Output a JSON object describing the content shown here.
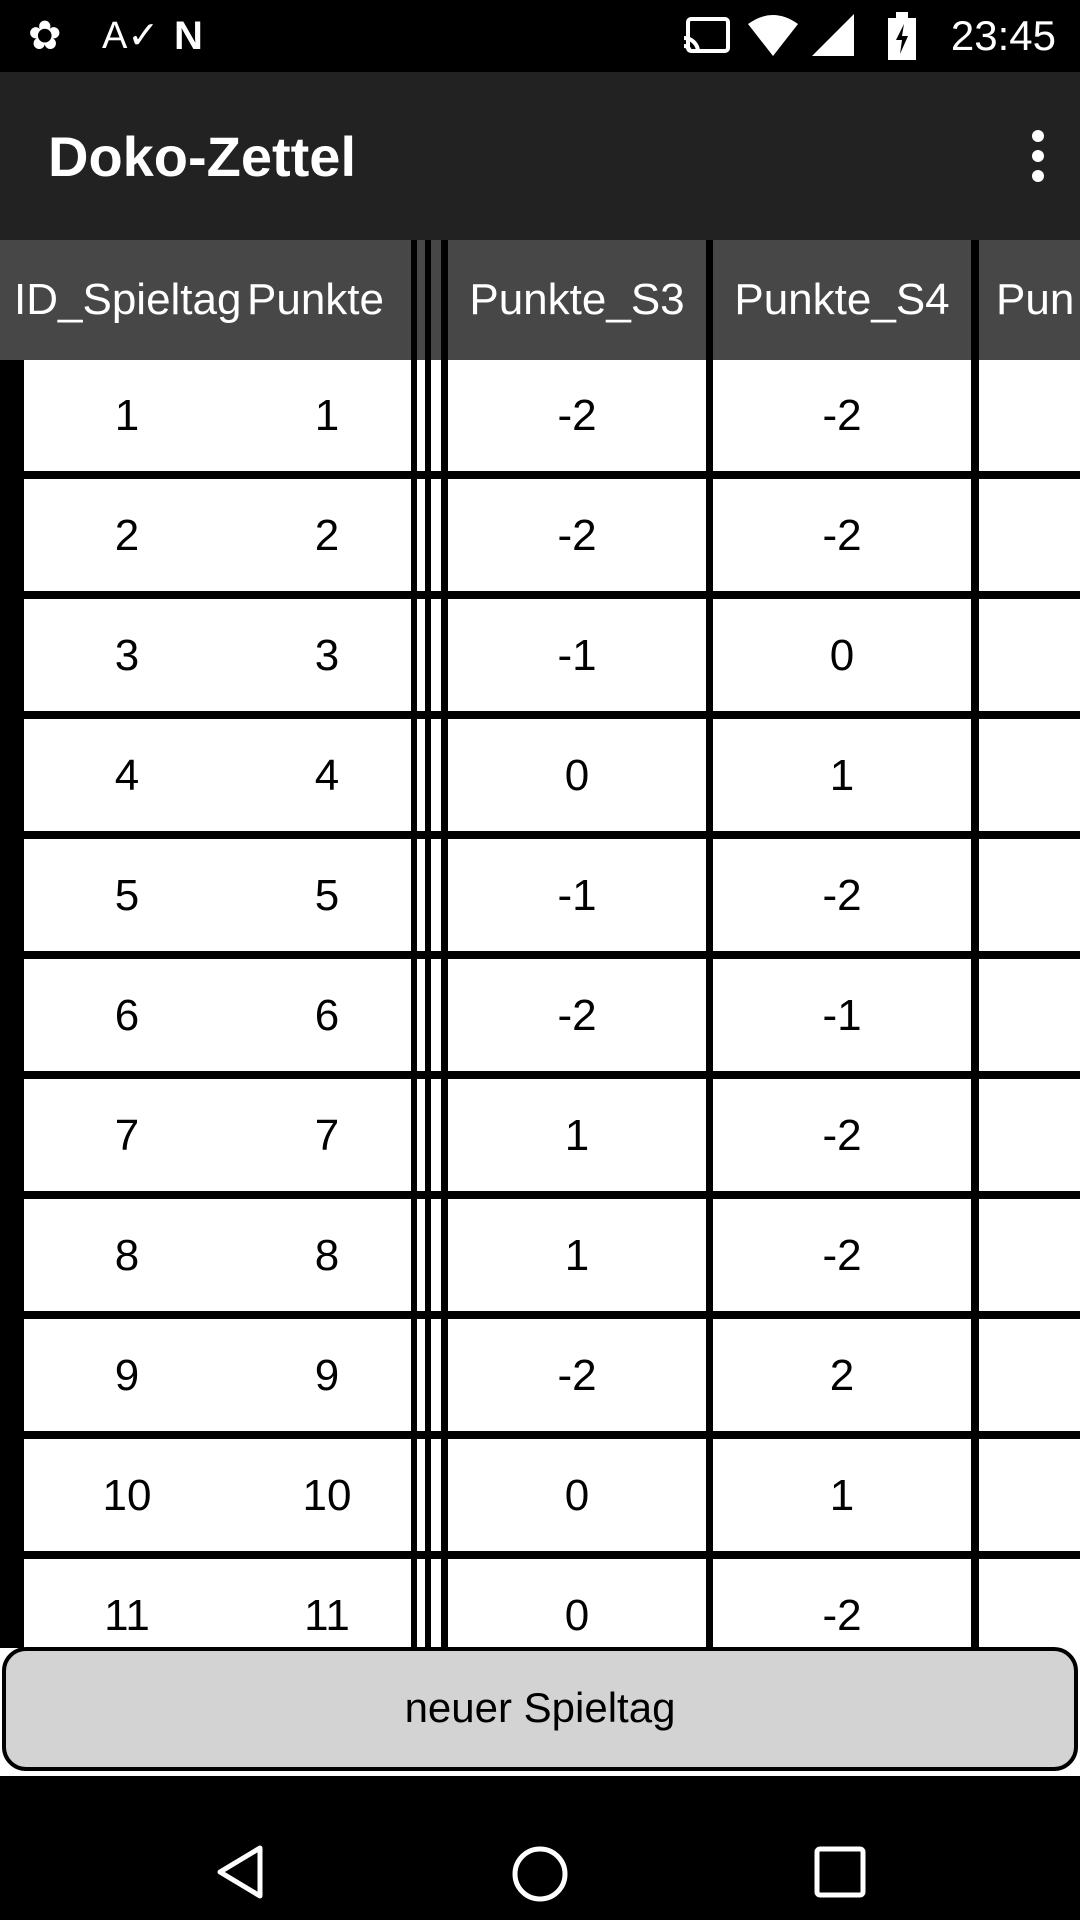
{
  "status_bar": {
    "time": "23:45",
    "icons": [
      "avast-icon",
      "spellcheck-icon",
      "n-icon",
      "cast-icon",
      "wifi-icon",
      "signal-icon",
      "battery-charging-icon"
    ]
  },
  "app_bar": {
    "title": "Doko-Zettel",
    "menu_icon": "more-vert-icon"
  },
  "table": {
    "headers": [
      "ID_Spieltag",
      "Punkte",
      "Punkte_S3",
      "Punkte_S4",
      "Pun"
    ],
    "rows": [
      [
        "1",
        "1",
        "-2",
        "-2"
      ],
      [
        "2",
        "2",
        "-2",
        "-2"
      ],
      [
        "3",
        "3",
        "-1",
        "0"
      ],
      [
        "4",
        "4",
        "0",
        "1"
      ],
      [
        "5",
        "5",
        "-1",
        "-2"
      ],
      [
        "6",
        "6",
        "-2",
        "-1"
      ],
      [
        "7",
        "7",
        "1",
        "-2"
      ],
      [
        "8",
        "8",
        "1",
        "-2"
      ],
      [
        "9",
        "9",
        "-2",
        "2"
      ],
      [
        "10",
        "10",
        "0",
        "1"
      ],
      [
        "11",
        "11",
        "0",
        "-2"
      ]
    ]
  },
  "button": {
    "label": "neuer Spieltag"
  },
  "nav_bar": {
    "icons": [
      "back-icon",
      "home-icon",
      "recents-icon"
    ]
  }
}
